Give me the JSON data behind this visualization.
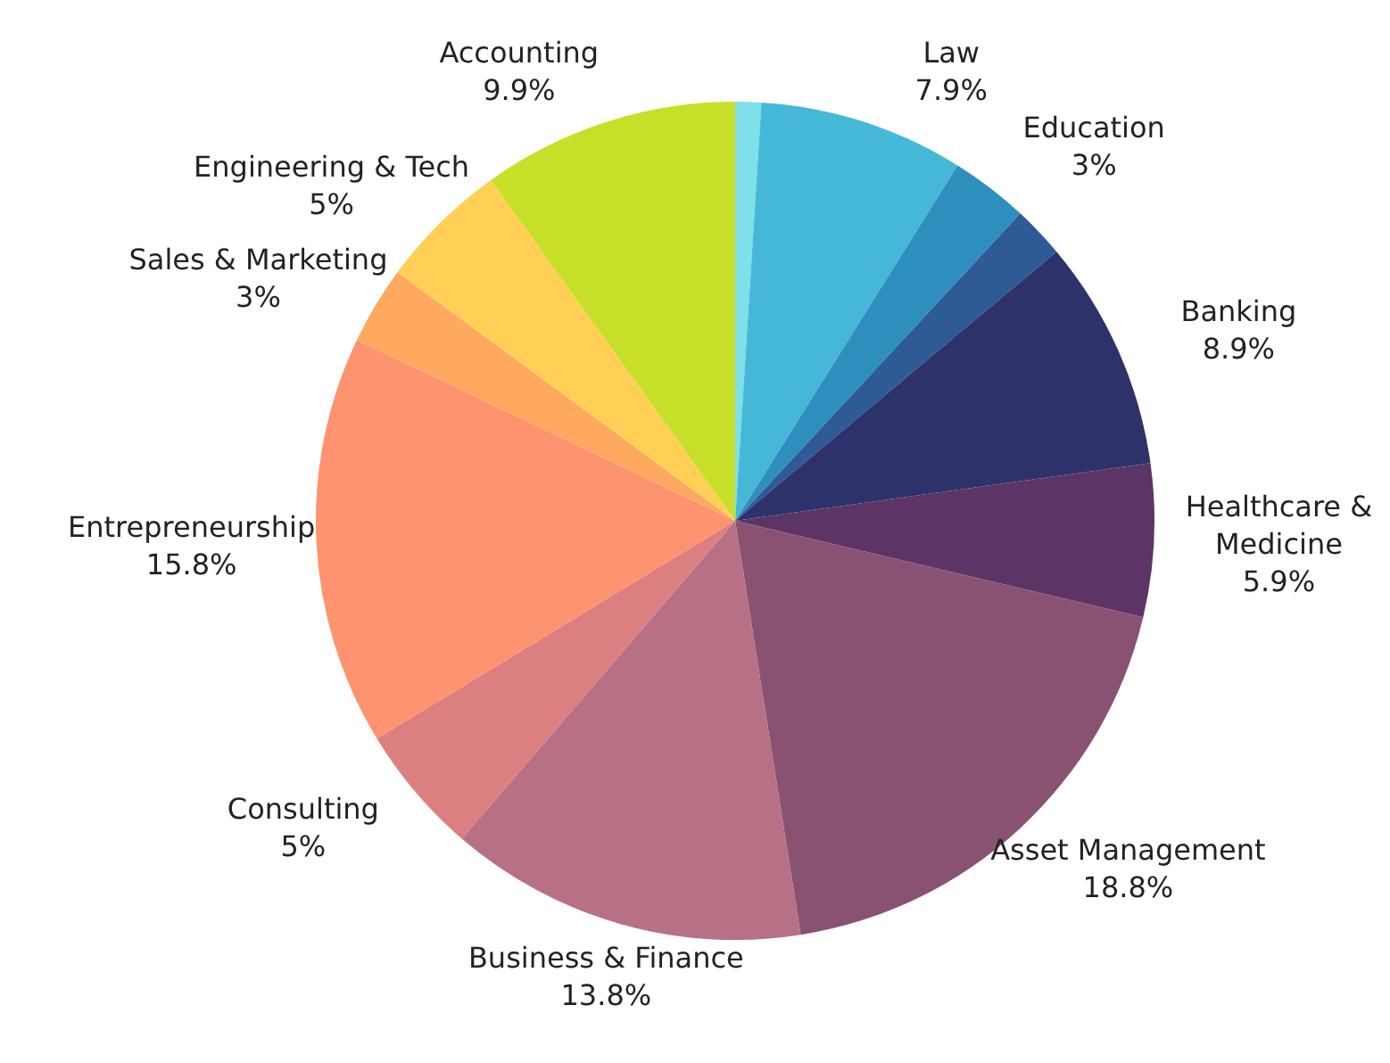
{
  "chart_data": {
    "type": "pie",
    "categories": [
      null,
      "Law",
      "Education",
      null,
      "Banking",
      "Healthcare & Medicine",
      "Asset Management",
      "Business & Finance",
      "Consulting",
      "Entrepreneurship",
      "Sales & Marketing",
      "Engineering & Tech",
      "Accounting"
    ],
    "values": [
      1,
      7.9,
      3,
      2,
      8.9,
      5.9,
      18.8,
      13.8,
      5,
      15.8,
      3,
      5,
      9.9
    ],
    "value_labels": [
      null,
      "7.9%",
      "3%",
      null,
      "8.9%",
      "5.9%",
      "18.8%",
      "13.8%",
      "5%",
      "15.8%",
      "3%",
      "5%",
      "9.9%"
    ],
    "colors": [
      "#7ee0e8",
      "#45b8d8",
      "#2e8fbf",
      "#2e5a96",
      "#2e326b",
      "#5c3566",
      "#8a5272",
      "#b87085",
      "#dc7f80",
      "#fe9370",
      "#fea860",
      "#ffd055",
      "#c8df2a"
    ],
    "legend": false
  }
}
